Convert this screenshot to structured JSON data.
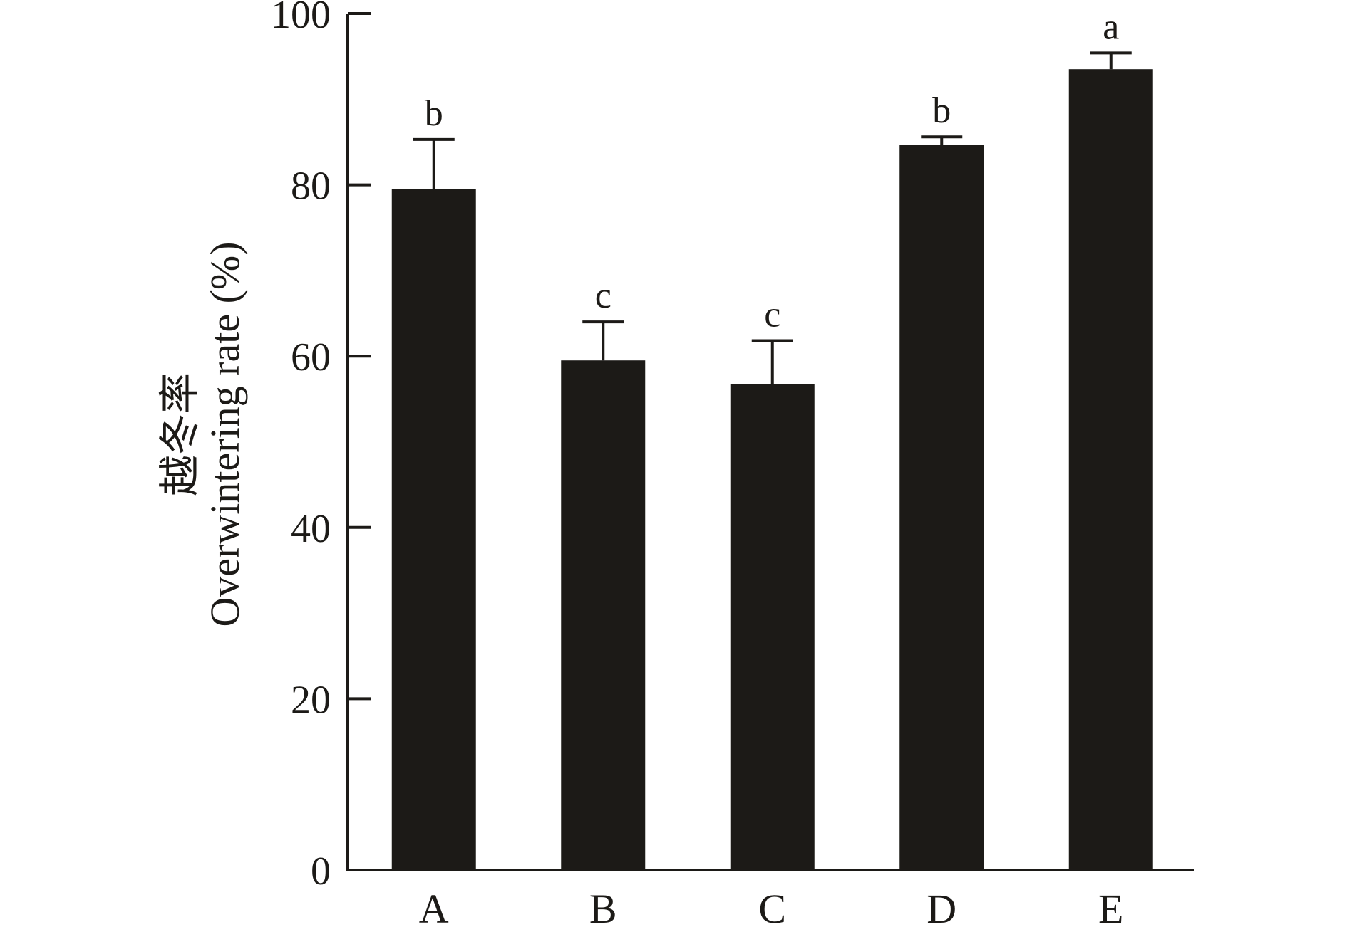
{
  "chart_data": {
    "type": "bar",
    "title": "",
    "ylabel_cn": "越冬率",
    "ylabel": "Overwintering rate (%)",
    "xlabel": "",
    "categories": [
      "A",
      "B",
      "C",
      "D",
      "E"
    ],
    "values": [
      79.5,
      59.5,
      56.7,
      84.7,
      93.5
    ],
    "errors": [
      5.8,
      4.5,
      5.1,
      0.9,
      1.9
    ],
    "significance": [
      "b",
      "c",
      "c",
      "b",
      "a"
    ],
    "ylim": [
      0,
      100
    ],
    "yticks": [
      "0",
      "20",
      "40",
      "60",
      "80",
      "100"
    ],
    "grid": false,
    "bar_color": "#1c1a17"
  }
}
